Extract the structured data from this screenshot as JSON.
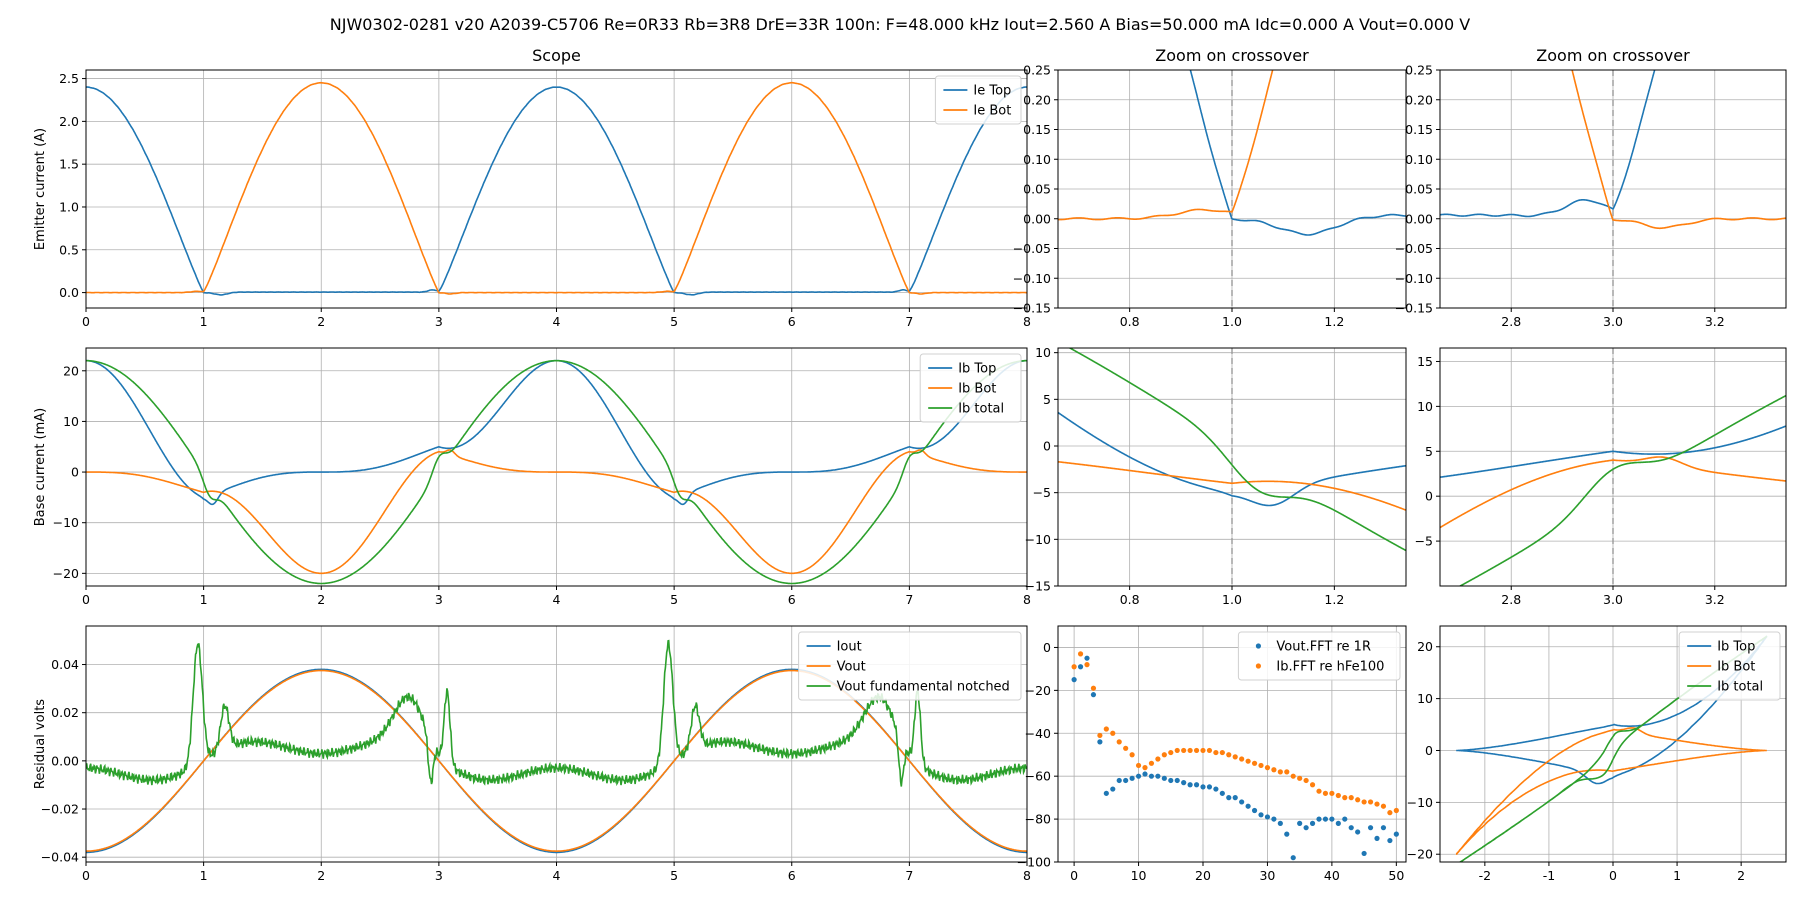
{
  "figure": {
    "suptitle": "NJW0302-0281 v20 A2039-C5706 Re=0R33 Rb=3R8 DrE=33R 100n: F=48.000 kHz Iout=2.560 A Bias=50.000 mA Idc=0.000 A Vout=0.000 V"
  },
  "colors": {
    "blue": "#1f77b4",
    "orange": "#ff7f0e",
    "green": "#2ca02c",
    "grid": "#b0b0b0",
    "vline": "#999999"
  },
  "chart_data": [
    {
      "id": "scope_emitter",
      "type": "line",
      "title": "Scope",
      "xlabel": "",
      "ylabel": "Emitter current (A)",
      "xlim": [
        0,
        8
      ],
      "ylim": [
        -0.18,
        2.6
      ],
      "xticks": [
        0,
        1,
        2,
        3,
        4,
        5,
        6,
        7,
        8
      ],
      "yticks": [
        0.0,
        0.5,
        1.0,
        1.5,
        2.0,
        2.5
      ],
      "ydec": 1,
      "grid": true,
      "legend": "top-right",
      "series": [
        {
          "name": "Ie Top",
          "color": "blue",
          "fn": "ieTop"
        },
        {
          "name": "Ie Bot",
          "color": "orange",
          "fn": "ieBot"
        }
      ]
    },
    {
      "id": "zoom1_emitter",
      "type": "line",
      "title": "Zoom on crossover",
      "xlabel": "",
      "ylabel": "",
      "xlim": [
        0.66,
        1.34
      ],
      "ylim": [
        -0.15,
        0.25
      ],
      "xticks": [
        0.8,
        1.0,
        1.2
      ],
      "yticks": [
        -0.15,
        -0.1,
        -0.05,
        0.0,
        0.05,
        0.1,
        0.15,
        0.2,
        0.25
      ],
      "ydec": 2,
      "xdec": 1,
      "grid": true,
      "vline": 1.0,
      "series": [
        {
          "name": "Ie Top",
          "color": "blue",
          "fn": "ieTop"
        },
        {
          "name": "Ie Bot",
          "color": "orange",
          "fn": "ieBot"
        }
      ]
    },
    {
      "id": "zoom3_emitter",
      "type": "line",
      "title": "Zoom on crossover",
      "xlabel": "",
      "ylabel": "",
      "xlim": [
        2.66,
        3.34
      ],
      "ylim": [
        -0.15,
        0.25
      ],
      "xticks": [
        2.8,
        3.0,
        3.2
      ],
      "yticks": [
        -0.15,
        -0.1,
        -0.05,
        0.0,
        0.05,
        0.1,
        0.15,
        0.2,
        0.25
      ],
      "ydec": 2,
      "xdec": 1,
      "grid": true,
      "vline": 3.0,
      "series": [
        {
          "name": "Ie Top",
          "color": "blue",
          "fn": "ieTop"
        },
        {
          "name": "Ie Bot",
          "color": "orange",
          "fn": "ieBot"
        }
      ]
    },
    {
      "id": "scope_base",
      "type": "line",
      "title": "",
      "xlabel": "",
      "ylabel": "Base current (mA)",
      "xlim": [
        0,
        8
      ],
      "ylim": [
        -22.5,
        24.5
      ],
      "xticks": [
        0,
        1,
        2,
        3,
        4,
        5,
        6,
        7,
        8
      ],
      "yticks": [
        -20,
        -10,
        0,
        10,
        20
      ],
      "ydec": 0,
      "grid": true,
      "legend": "top-right",
      "series": [
        {
          "name": "Ib Top",
          "color": "blue",
          "fn": "ibTop"
        },
        {
          "name": "Ib Bot",
          "color": "orange",
          "fn": "ibBot"
        },
        {
          "name": "Ib total",
          "color": "green",
          "fn": "ibTot"
        }
      ]
    },
    {
      "id": "zoom1_base",
      "type": "line",
      "title": "",
      "xlabel": "",
      "ylabel": "",
      "xlim": [
        0.66,
        1.34
      ],
      "ylim": [
        -15,
        10.5
      ],
      "xticks": [
        0.8,
        1.0,
        1.2
      ],
      "yticks": [
        -15,
        -10,
        -5,
        0,
        5,
        10
      ],
      "ydec": 0,
      "xdec": 1,
      "grid": true,
      "vline": 1.0,
      "series": [
        {
          "name": "Ib Top",
          "color": "blue",
          "fn": "ibTop"
        },
        {
          "name": "Ib Bot",
          "color": "orange",
          "fn": "ibBot"
        },
        {
          "name": "Ib total",
          "color": "green",
          "fn": "ibTot"
        }
      ]
    },
    {
      "id": "zoom3_base",
      "type": "line",
      "title": "",
      "xlabel": "",
      "ylabel": "",
      "xlim": [
        2.66,
        3.34
      ],
      "ylim": [
        -10,
        16.5
      ],
      "xticks": [
        2.8,
        3.0,
        3.2
      ],
      "yticks": [
        -5,
        0,
        5,
        10,
        15
      ],
      "ydec": 0,
      "xdec": 1,
      "grid": true,
      "vline": 3.0,
      "series": [
        {
          "name": "Ib Top",
          "color": "blue",
          "fn": "ibTop"
        },
        {
          "name": "Ib Bot",
          "color": "orange",
          "fn": "ibBot"
        },
        {
          "name": "Ib total",
          "color": "green",
          "fn": "ibTot"
        }
      ]
    },
    {
      "id": "scope_residual",
      "type": "line",
      "title": "",
      "xlabel": "",
      "ylabel": "Residual volts",
      "xlim": [
        0,
        8
      ],
      "ylim": [
        -0.042,
        0.056
      ],
      "xticks": [
        0,
        1,
        2,
        3,
        4,
        5,
        6,
        7,
        8
      ],
      "yticks": [
        -0.04,
        -0.02,
        0.0,
        0.02,
        0.04
      ],
      "ydec": 2,
      "grid": true,
      "legend": "top-right",
      "series": [
        {
          "name": "Iout",
          "color": "blue",
          "fn": "iout"
        },
        {
          "name": "Vout",
          "color": "orange",
          "fn": "vout"
        },
        {
          "name": "Vout fundamental notched",
          "color": "green",
          "fn": "notch"
        }
      ]
    },
    {
      "id": "fft",
      "type": "scatter",
      "title": "",
      "xlabel": "",
      "ylabel": "",
      "xlim": [
        -2.5,
        51.5
      ],
      "ylim": [
        -100,
        10
      ],
      "xticks": [
        0,
        10,
        20,
        30,
        40,
        50
      ],
      "yticks": [
        -100,
        -80,
        -60,
        -40,
        -20,
        0
      ],
      "ydec": 0,
      "grid": true,
      "legend": "top-right",
      "series": [
        {
          "name": "Vout.FFT re 1R",
          "color": "blue",
          "x": [
            0,
            1,
            2,
            3,
            4,
            5,
            6,
            7,
            8,
            9,
            10,
            11,
            12,
            13,
            14,
            15,
            16,
            17,
            18,
            19,
            20,
            21,
            22,
            23,
            24,
            25,
            26,
            27,
            28,
            29,
            30,
            31,
            32,
            33,
            34,
            35,
            36,
            37,
            38,
            39,
            40,
            41,
            42,
            43,
            44,
            45,
            46,
            47,
            48,
            49,
            50
          ],
          "y": [
            -15,
            -9,
            -5,
            -22,
            -44,
            -68,
            -66,
            -62,
            -62,
            -61,
            -60,
            -59,
            -60,
            -60,
            -61,
            -62,
            -62,
            -63,
            -64,
            -64,
            -65,
            -65,
            -66,
            -68,
            -70,
            -70,
            -72,
            -74,
            -76,
            -78,
            -79,
            -80,
            -82,
            -87,
            -98,
            -82,
            -84,
            -82,
            -80,
            -80,
            -80,
            -82,
            -80,
            -84,
            -86,
            -96,
            -84,
            -89,
            -84,
            -90,
            -87
          ]
        },
        {
          "name": "Ib.FFT re hFe100",
          "color": "orange",
          "x": [
            0,
            1,
            2,
            3,
            4,
            5,
            6,
            7,
            8,
            9,
            10,
            11,
            12,
            13,
            14,
            15,
            16,
            17,
            18,
            19,
            20,
            21,
            22,
            23,
            24,
            25,
            26,
            27,
            28,
            29,
            30,
            31,
            32,
            33,
            34,
            35,
            36,
            37,
            38,
            39,
            40,
            41,
            42,
            43,
            44,
            45,
            46,
            47,
            48,
            49,
            50
          ],
          "y": [
            -9,
            -3,
            -8,
            -19,
            -41,
            -38,
            -40,
            -44,
            -47,
            -50,
            -55,
            -56,
            -54,
            -52,
            -50,
            -49,
            -48,
            -48,
            -48,
            -48,
            -48,
            -48,
            -49,
            -49,
            -50,
            -51,
            -52,
            -53,
            -54,
            -55,
            -56,
            -57,
            -58,
            -58,
            -60,
            -61,
            -62,
            -64,
            -67,
            -68,
            -68,
            -69,
            -70,
            -70,
            -71,
            -72,
            -72,
            -73,
            -74,
            -77,
            -76
          ]
        }
      ]
    },
    {
      "id": "xy_base",
      "type": "line",
      "title": "",
      "xlabel": "",
      "ylabel": "",
      "xlim": [
        -2.7,
        2.7
      ],
      "ylim": [
        -21.5,
        24
      ],
      "xticks": [
        -2,
        -1,
        0,
        1,
        2
      ],
      "yticks": [
        -20,
        -10,
        0,
        10,
        20
      ],
      "ydec": 0,
      "grid": true,
      "legend": "top-right",
      "series": [
        {
          "name": "Ib Top",
          "color": "blue",
          "fn": "xyTop"
        },
        {
          "name": "Ib Bot",
          "color": "orange",
          "fn": "xyBot"
        },
        {
          "name": "Ib total",
          "color": "green",
          "fn": "xyTot"
        }
      ]
    }
  ]
}
